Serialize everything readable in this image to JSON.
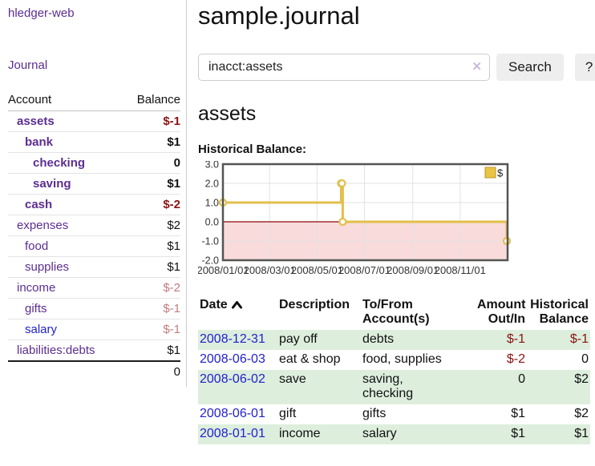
{
  "brand": "hledger-web",
  "sidebar": {
    "journal_link": "Journal",
    "accounts_table": {
      "headers": [
        "Account",
        "Balance"
      ],
      "rows": [
        {
          "label": "assets",
          "depth": 0,
          "bold": true,
          "balance": "$-1",
          "cls": "neg"
        },
        {
          "label": "bank",
          "depth": 1,
          "bold": true,
          "balance": "$1",
          "cls": ""
        },
        {
          "label": "checking",
          "depth": 2,
          "bold": true,
          "balance": "0",
          "cls": ""
        },
        {
          "label": "saving",
          "depth": 2,
          "bold": true,
          "balance": "$1",
          "cls": ""
        },
        {
          "label": "cash",
          "depth": 1,
          "bold": true,
          "balance": "$-2",
          "cls": "neg"
        },
        {
          "label": "expenses",
          "depth": 0,
          "bold": false,
          "balance": "$2",
          "cls": ""
        },
        {
          "label": "food",
          "depth": 1,
          "bold": false,
          "balance": "$1",
          "cls": ""
        },
        {
          "label": "supplies",
          "depth": 1,
          "bold": false,
          "balance": "$1",
          "cls": ""
        },
        {
          "label": "income",
          "depth": 0,
          "bold": false,
          "balance": "$-2",
          "cls": "dim"
        },
        {
          "label": "gifts",
          "depth": 1,
          "bold": false,
          "balance": "$-1",
          "cls": "dim"
        },
        {
          "label": "salary",
          "depth": 1,
          "bold": false,
          "balance": "$-1",
          "cls": "dim",
          "unvisited": true
        },
        {
          "label": "liabilities:debts",
          "depth": 0,
          "bold": false,
          "balance": "$1",
          "cls": ""
        }
      ],
      "total": "0"
    }
  },
  "main": {
    "title": "sample.journal",
    "search": {
      "value": "inacct:assets",
      "clear_icon": "✕",
      "button_label": "Search",
      "help_label": "?"
    },
    "heading": "assets",
    "register": {
      "columns": [
        {
          "label": "Date",
          "align": "left",
          "sort": true
        },
        {
          "label": "Description",
          "align": "left"
        },
        {
          "label": "To/From\nAccount(s)",
          "align": "left"
        },
        {
          "label": "Amount\nOut/In",
          "align": "right"
        },
        {
          "label": "Historical\nBalance",
          "align": "right"
        }
      ],
      "rows": [
        {
          "date": "2008-12-31",
          "description": "pay off",
          "accounts": "debts",
          "amount": "$-1",
          "amount_neg": true,
          "balance": "$-1",
          "balance_neg": true,
          "shaded": true
        },
        {
          "date": "2008-06-03",
          "description": "eat & shop",
          "accounts": "food, supplies",
          "amount": "$-2",
          "amount_neg": true,
          "balance": "0",
          "balance_neg": false,
          "shaded": false
        },
        {
          "date": "2008-06-02",
          "description": "save",
          "accounts": "saving,\nchecking",
          "amount": "0",
          "amount_neg": false,
          "balance": "$2",
          "balance_neg": false,
          "shaded": true
        },
        {
          "date": "2008-06-01",
          "description": "gift",
          "accounts": "gifts",
          "amount": "$1",
          "amount_neg": false,
          "balance": "$2",
          "balance_neg": false,
          "shaded": false
        },
        {
          "date": "2008-01-01",
          "description": "income",
          "accounts": "salary",
          "amount": "$1",
          "amount_neg": false,
          "balance": "$1",
          "balance_neg": false,
          "shaded": true
        }
      ]
    }
  },
  "chart_data": {
    "type": "line",
    "title": "Historical Balance:",
    "step": true,
    "series": [
      {
        "name": "$",
        "color": "#e3bf4b",
        "points": [
          {
            "date": "2008-01-01",
            "value": 1
          },
          {
            "date": "2008-06-01",
            "value": 2
          },
          {
            "date": "2008-06-02",
            "value": 2
          },
          {
            "date": "2008-06-03",
            "value": 0
          },
          {
            "date": "2008-12-31",
            "value": -1
          }
        ]
      }
    ],
    "x_domain": [
      "2008-01-01",
      "2009-01-01"
    ],
    "x_tick_labels": [
      "2008/01/01",
      "2008/03/01",
      "2008/05/01",
      "2008/07/01",
      "2008/09/01",
      "2008/11/01"
    ],
    "x_tick_dates": [
      "2008-01-01",
      "2008-03-01",
      "2008-05-01",
      "2008-07-01",
      "2008-09-01",
      "2008-11-01"
    ],
    "y_ticks": [
      3.0,
      2.0,
      1.0,
      0.0,
      -1.0,
      -2.0
    ],
    "ylim": [
      -2,
      3
    ],
    "grid": true,
    "legend": {
      "label": "$",
      "position": "top-right"
    },
    "colors": {
      "line": "#e3bf4b",
      "marker_fill": "#ffffff",
      "negative_region": "#f9dbdb",
      "zero_line": "#8a0b0b",
      "gridline": "#e2e2e2",
      "frame": "#545454",
      "swatch_fill": "#e9c544",
      "swatch_border": "#bd982a",
      "tick_text": "#333333"
    }
  }
}
